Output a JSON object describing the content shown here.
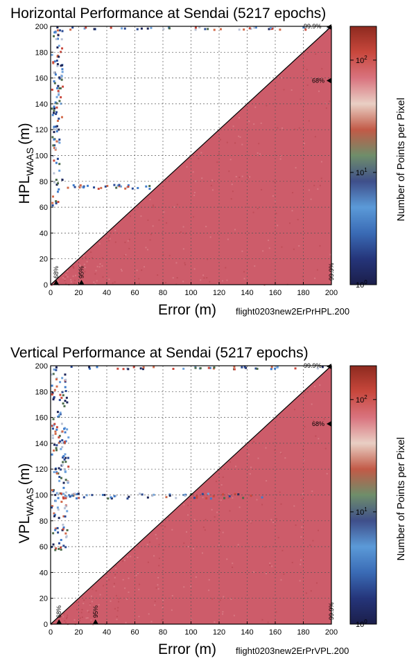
{
  "chart_data": [
    {
      "type": "heatmap",
      "title": "Horizontal Performance at Sendai (5217 epochs)",
      "xlabel": "Error (m)",
      "ylabel_main": "HPL",
      "ylabel_sub": "WAAS",
      "ylabel_unit": "(m)",
      "filename": "flight0203new2ErPrHPL.200",
      "xlim": [
        0,
        200
      ],
      "ylim": [
        0,
        200
      ],
      "xticks": [
        "0",
        "20",
        "40",
        "60",
        "80",
        "100",
        "120",
        "140",
        "160",
        "180",
        "200"
      ],
      "yticks": [
        "0",
        "20",
        "40",
        "60",
        "80",
        "100",
        "120",
        "140",
        "160",
        "180",
        "200"
      ],
      "grid": true,
      "colorbar": {
        "label": "Number of Points per Pixel",
        "scale": "log",
        "range": [
          1,
          200
        ],
        "ticks": [
          "10",
          "10",
          "10"
        ],
        "tick_exponents": [
          "0",
          "1",
          "2"
        ]
      },
      "percentile_markers": {
        "x_axis": [
          {
            "label": "68%",
            "value": 4
          },
          {
            "label": "95%",
            "value": 22
          }
        ],
        "right_axis": [
          {
            "label": "68%",
            "value": 158
          }
        ],
        "top_right_label": "99.9%",
        "bottom_right_label": "99.9%"
      },
      "regions": [
        {
          "description": "main density",
          "x": [
            0,
            200
          ],
          "y": [
            0,
            200
          ],
          "counts_per_pixel": "~80-100"
        }
      ],
      "clusters": [
        {
          "x": [
            0,
            8
          ],
          "y": [
            62,
            200
          ],
          "color_level": "1-10"
        },
        {
          "x": [
            0,
            70
          ],
          "y": [
            75,
            78
          ],
          "color_level": "1-10"
        },
        {
          "x": [
            5,
            200
          ],
          "y": [
            198,
            200
          ],
          "color_level": "1-10"
        }
      ]
    },
    {
      "type": "heatmap",
      "title": "Vertical Performance at Sendai (5217 epochs)",
      "xlabel": "Error (m)",
      "ylabel_main": "VPL",
      "ylabel_sub": "WAAS",
      "ylabel_unit": "(m)",
      "filename": "flight0203new2ErPrVPL.200",
      "xlim": [
        0,
        200
      ],
      "ylim": [
        0,
        200
      ],
      "xticks": [
        "0",
        "20",
        "40",
        "60",
        "80",
        "100",
        "120",
        "140",
        "160",
        "180",
        "200"
      ],
      "yticks": [
        "0",
        "20",
        "40",
        "60",
        "80",
        "100",
        "120",
        "140",
        "160",
        "180",
        "200"
      ],
      "grid": true,
      "colorbar": {
        "label": "Number of Points per Pixel",
        "scale": "log",
        "range": [
          1,
          200
        ],
        "ticks": [
          "10",
          "10",
          "10"
        ],
        "tick_exponents": [
          "0",
          "1",
          "2"
        ]
      },
      "percentile_markers": {
        "x_axis": [
          {
            "label": "68%",
            "value": 6
          },
          {
            "label": "95%",
            "value": 32
          }
        ],
        "right_axis": [
          {
            "label": "68%",
            "value": 155
          }
        ],
        "top_right_label": "99.9%",
        "bottom_right_label": "99.9%"
      },
      "regions": [
        {
          "description": "main density",
          "x": [
            0,
            200
          ],
          "y": [
            0,
            200
          ],
          "counts_per_pixel": "~80-100"
        }
      ],
      "clusters": [
        {
          "x": [
            0,
            12
          ],
          "y": [
            55,
            200
          ],
          "color_level": "1-10"
        },
        {
          "x": [
            0,
            150
          ],
          "y": [
            98,
            102
          ],
          "color_level": "1-10"
        },
        {
          "x": [
            5,
            200
          ],
          "y": [
            198,
            200
          ],
          "color_level": "1-10"
        }
      ]
    }
  ],
  "colors": {
    "density_fill": "#cd5c6a",
    "diagonal": "#000000",
    "grid": "#555555",
    "colorbar_stops": [
      "#1b1e4a",
      "#25357a",
      "#3a6bb5",
      "#5b9ad8",
      "#3f4f8a",
      "#6f8e6a",
      "#c25a47",
      "#e9cfc4",
      "#d9737e",
      "#c8473c",
      "#8d2a1f"
    ]
  }
}
